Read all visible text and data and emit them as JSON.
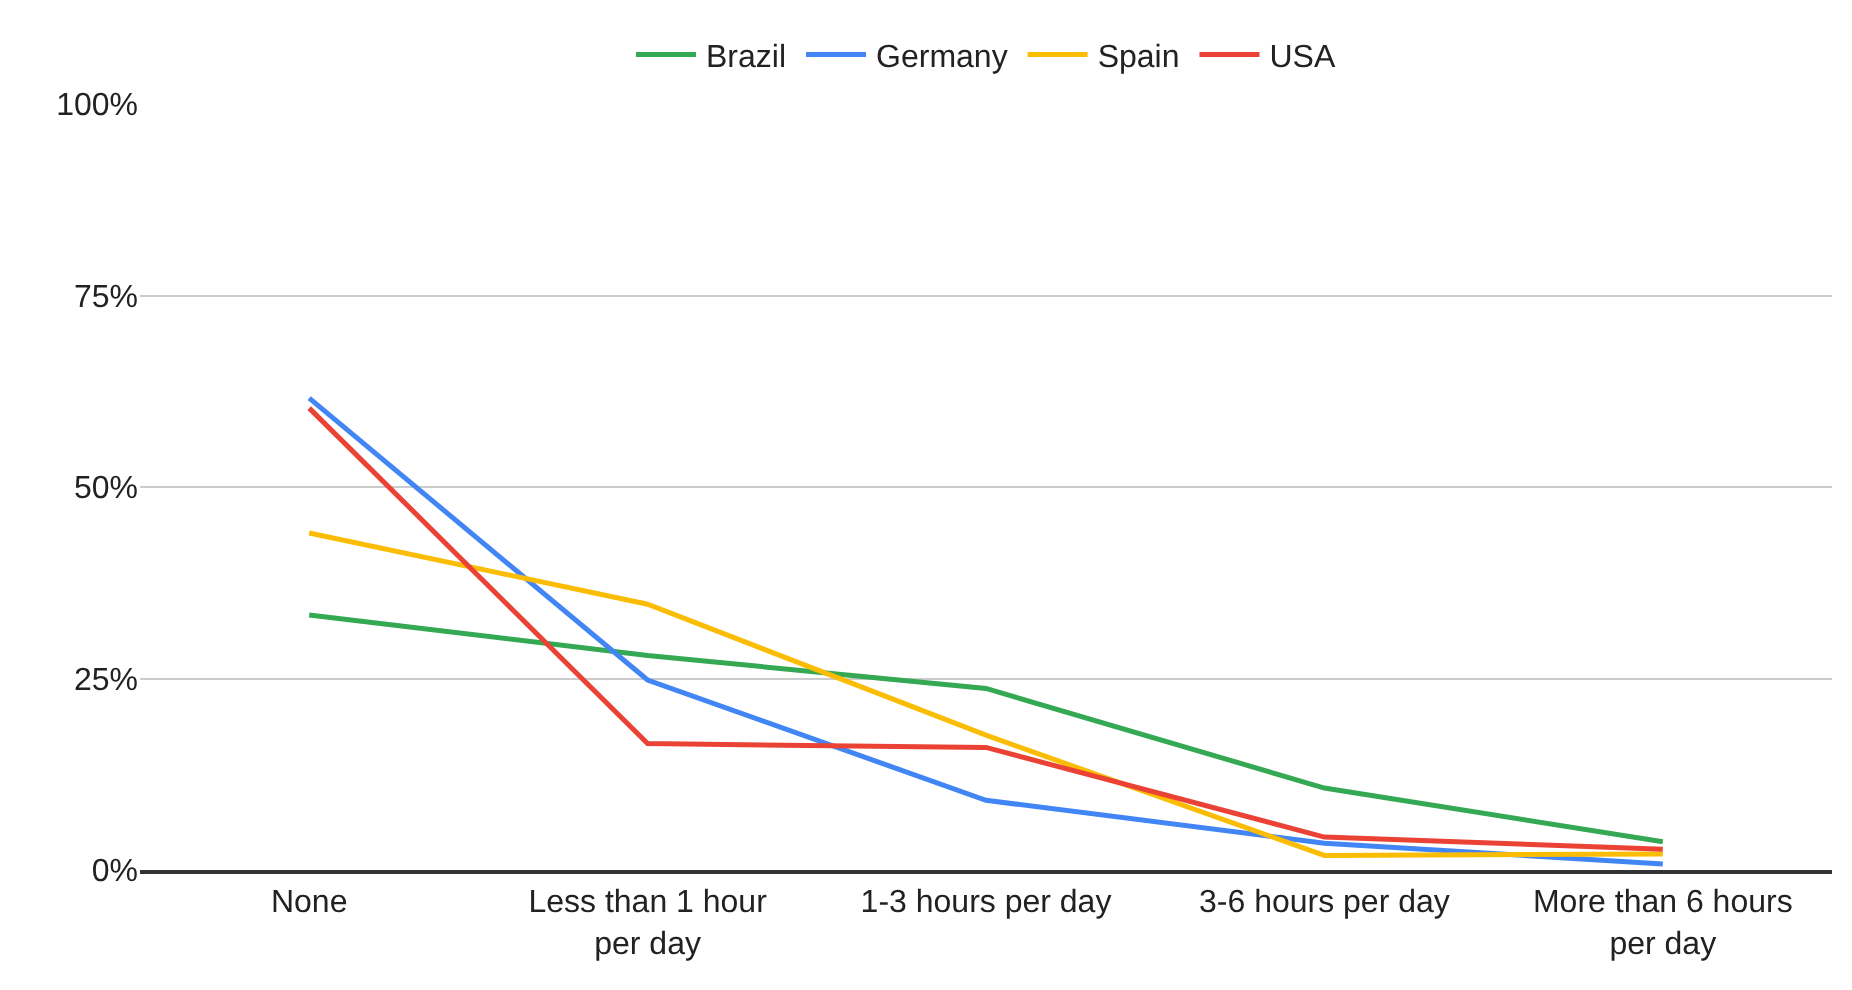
{
  "chart_data": {
    "type": "line",
    "categories": [
      "None",
      "Less than 1 hour per day",
      "1-3 hours per day",
      "3-6 hours per day",
      "More than 6 hours per day"
    ],
    "series": [
      {
        "name": "Brazil",
        "color": "#34a853",
        "values": [
          33.3,
          28,
          23.7,
          10.7,
          3.7
        ]
      },
      {
        "name": "Germany",
        "color": "#4285f4",
        "values": [
          61.6,
          24.8,
          9.1,
          3.5,
          0.8
        ]
      },
      {
        "name": "Spain",
        "color": "#fbbc04",
        "values": [
          44,
          34.7,
          17.6,
          1.9,
          2.1
        ]
      },
      {
        "name": "USA",
        "color": "#ea4335",
        "values": [
          60.3,
          16.5,
          16,
          4.3,
          2.7
        ]
      }
    ],
    "ylim": [
      0,
      100
    ],
    "yticks": [
      {
        "value": 0,
        "label": "0%"
      },
      {
        "value": 25,
        "label": "25%"
      },
      {
        "value": 50,
        "label": "50%"
      },
      {
        "value": 75,
        "label": "75%"
      },
      {
        "value": 100,
        "label": "100%"
      }
    ],
    "grid": "y",
    "legend": "top",
    "marker": "none",
    "line_style": "solid"
  }
}
